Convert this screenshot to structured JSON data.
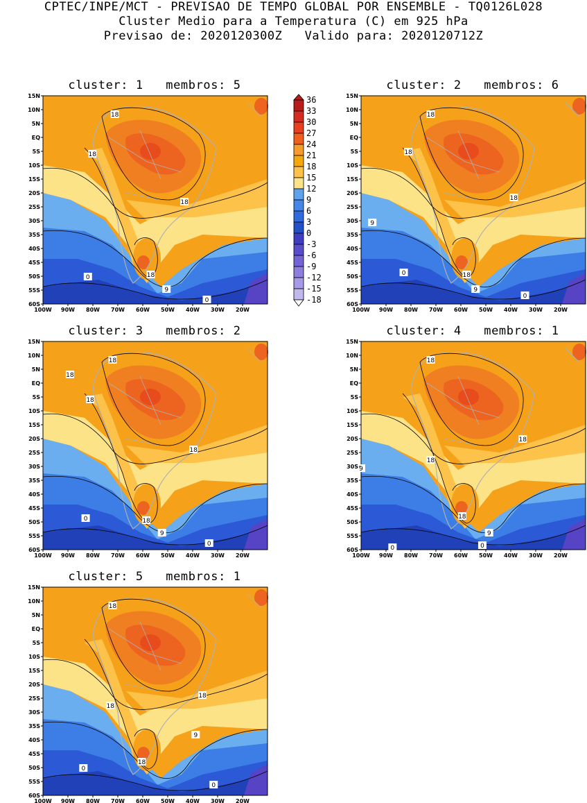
{
  "header": {
    "line1": "CPTEC/INPE/MCT - PREVISAO DE TEMPO GLOBAL POR ENSEMBLE - TQ0126L028",
    "line2": "Cluster Medio para a Temperatura (C) em 925 hPa",
    "line3": "Previsao de: 2020120300Z   Valido para: 2020120712Z"
  },
  "lat_labels": [
    "15N",
    "10N",
    "5N",
    "EQ",
    "5S",
    "10S",
    "15S",
    "20S",
    "25S",
    "30S",
    "35S",
    "40S",
    "45S",
    "50S",
    "55S",
    "60S"
  ],
  "lon_labels": [
    "100W",
    "90W",
    "80W",
    "70W",
    "60W",
    "50W",
    "40W",
    "30W",
    "20W"
  ],
  "colorbar": {
    "labels": [
      "36",
      "33",
      "30",
      "27",
      "24",
      "21",
      "18",
      "15",
      "12",
      "9",
      "6",
      "3",
      "0",
      "-3",
      "-6",
      "-9",
      "-12",
      "-15",
      "-18"
    ],
    "colors": [
      "#b81c1c",
      "#d42a22",
      "#e8401e",
      "#f0601c",
      "#f79b2c",
      "#f4a80a",
      "#fcc24a",
      "#fde387",
      "#5fa3ee",
      "#4586e8",
      "#3169df",
      "#2350c9",
      "#3f3ec2",
      "#5a4dcc",
      "#7464d6",
      "#8e7fde",
      "#a79ae6",
      "#c2b8ee"
    ]
  },
  "palette": {
    "deep_blue": "#2141b8",
    "blue": "#2c5ad6",
    "mid_blue": "#3d7de6",
    "light_blue": "#6aaef0",
    "pale_yellow": "#fde387",
    "light_orange": "#fcc24a",
    "orange": "#f6a11a",
    "dark_orange": "#f07f22",
    "red_orange": "#ec6420",
    "red": "#e84b1c",
    "purple": "#5644c4",
    "land": "#b0b0b0"
  },
  "panels": [
    {
      "title": "cluster: 1   membros: 5",
      "labels": [
        "18",
        "18",
        "18",
        "18",
        "9",
        "0",
        "0"
      ]
    },
    {
      "title": "cluster: 2   membros: 6",
      "labels": [
        "18",
        "18",
        "18",
        "18",
        "9",
        "9",
        "0",
        "0"
      ]
    },
    {
      "title": "cluster: 3   membros: 2",
      "labels": [
        "18",
        "18",
        "18",
        "18",
        "18",
        "9",
        "0",
        "0"
      ]
    },
    {
      "title": "cluster: 4   membros: 1",
      "labels": [
        "18",
        "18",
        "18",
        "18",
        "9",
        "9",
        "0",
        "0"
      ]
    },
    {
      "title": "cluster: 5   membros: 1",
      "labels": [
        "18",
        "18",
        "18",
        "18",
        "9",
        "0",
        "0"
      ]
    }
  ]
}
